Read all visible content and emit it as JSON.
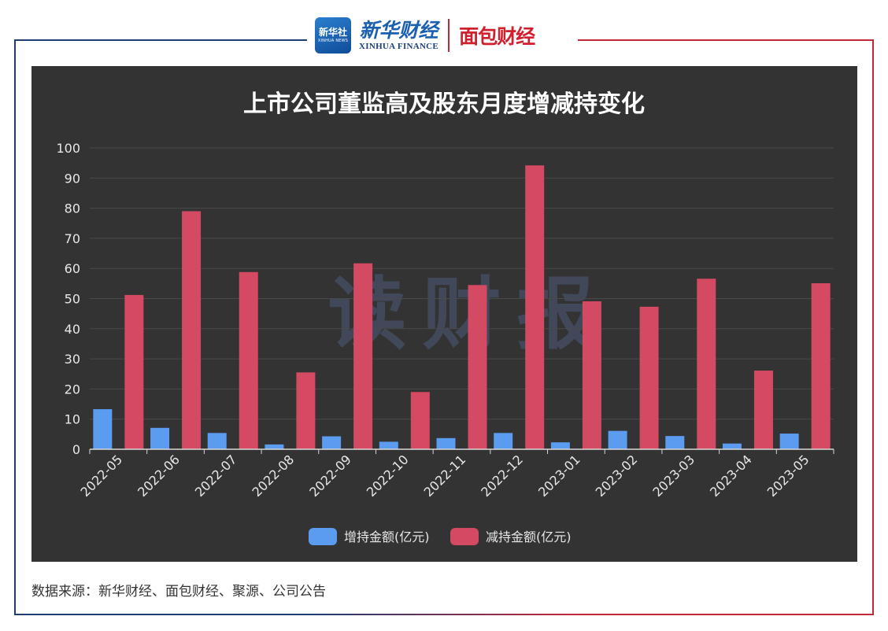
{
  "header": {
    "xinhua_badge_cn": "新华社",
    "xinhua_badge_en": "XINHUA NEWS",
    "xinhua_finance_cn": "新华财经",
    "xinhua_finance_en": "XINHUA FINANCE",
    "mianbao_logo": "面包财经"
  },
  "watermark": "读财报",
  "source_note": "数据来源：新华财经、面包财经、聚源、公司公告",
  "colors": {
    "increase": "#5b9bf0",
    "decrease": "#d34a62",
    "panel_bg": "#333333",
    "frame_left": "#1f3b73",
    "frame_right": "#c0283a"
  },
  "chart_data": {
    "type": "bar",
    "title": "上市公司董监高及股东月度增减持变化",
    "categories": [
      "2022-05",
      "2022-06",
      "2022-07",
      "2022-08",
      "2022-09",
      "2022-10",
      "2022-11",
      "2022-12",
      "2023-01",
      "2023-02",
      "2023-03",
      "2023-04",
      "2023-05"
    ],
    "series": [
      {
        "name": "增持金额(亿元)",
        "values": [
          13.3,
          7.1,
          5.4,
          1.6,
          4.3,
          2.5,
          3.7,
          5.4,
          2.3,
          6.1,
          4.4,
          1.9,
          5.2
        ]
      },
      {
        "name": "减持金额(亿元)",
        "values": [
          51.2,
          79.0,
          58.8,
          25.5,
          61.7,
          19.0,
          54.5,
          94.2,
          49.1,
          47.3,
          56.6,
          26.1,
          55.1
        ]
      }
    ],
    "yticks": [
      0,
      10,
      20,
      30,
      40,
      50,
      60,
      70,
      80,
      90,
      100
    ],
    "ylim": [
      0,
      100
    ],
    "xlabel": "",
    "ylabel": "",
    "legend": "bottom-center",
    "grid": true
  }
}
